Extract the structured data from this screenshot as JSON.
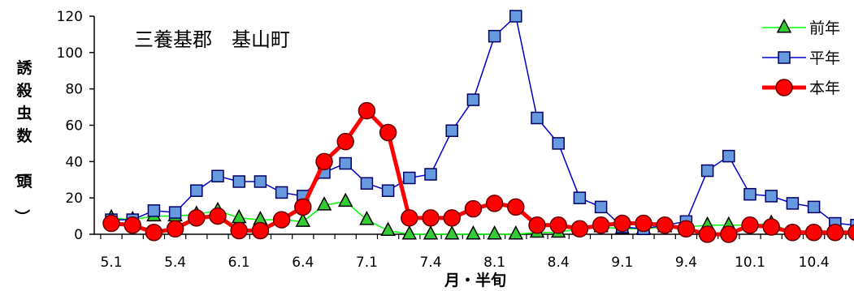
{
  "chart_data": {
    "type": "line",
    "title": "三養基郡　基山町",
    "xlabel": "月・半旬",
    "ylabel": "誘殺虫数（頭）",
    "ylim": [
      0,
      120
    ],
    "yticks": [
      0,
      20,
      40,
      60,
      80,
      100,
      120
    ],
    "x_tick_labels": [
      "5.1",
      "5.4",
      "6.1",
      "6.4",
      "7.1",
      "7.4",
      "8.1",
      "8.4",
      "9.1",
      "9.4",
      "10.1",
      "10.4"
    ],
    "x_tick_positions": [
      1,
      4,
      7,
      10,
      13,
      16,
      19,
      22,
      25,
      28,
      31,
      34
    ],
    "x_range": [
      1,
      37
    ],
    "grid": false,
    "legend_position": "top-right",
    "series": [
      {
        "name": "前年",
        "color": "#00ff00",
        "marker": "triangle",
        "marker_fill": "#33cc33",
        "values": [
          9,
          8,
          10,
          10,
          11,
          13,
          9,
          8,
          8,
          7,
          16,
          18,
          8,
          2,
          0,
          0,
          0,
          0,
          0,
          0,
          1,
          1,
          3,
          4,
          3,
          3,
          4,
          4,
          5,
          5,
          5,
          6,
          1,
          1,
          1,
          1,
          2
        ]
      },
      {
        "name": "平年",
        "color": "#0000cc",
        "marker": "square",
        "marker_fill": "#6699dd",
        "values": [
          8,
          8,
          13,
          12,
          24,
          32,
          29,
          29,
          23,
          21,
          34,
          39,
          28,
          24,
          31,
          33,
          57,
          74,
          109,
          120,
          64,
          50,
          20,
          15,
          4,
          3,
          5,
          7,
          35,
          43,
          22,
          21,
          17,
          15,
          6,
          5,
          5
        ]
      },
      {
        "name": "本年",
        "color": "#ff0000",
        "marker": "circle",
        "marker_fill": "#ff0000",
        "values": [
          6,
          5,
          1,
          3,
          9,
          10,
          2,
          2,
          8,
          15,
          40,
          51,
          68,
          56,
          9,
          9,
          9,
          14,
          17,
          15,
          5,
          5,
          3,
          5,
          6,
          6,
          5,
          3,
          0,
          0,
          5,
          4,
          1,
          1,
          1,
          1,
          1
        ]
      }
    ]
  }
}
